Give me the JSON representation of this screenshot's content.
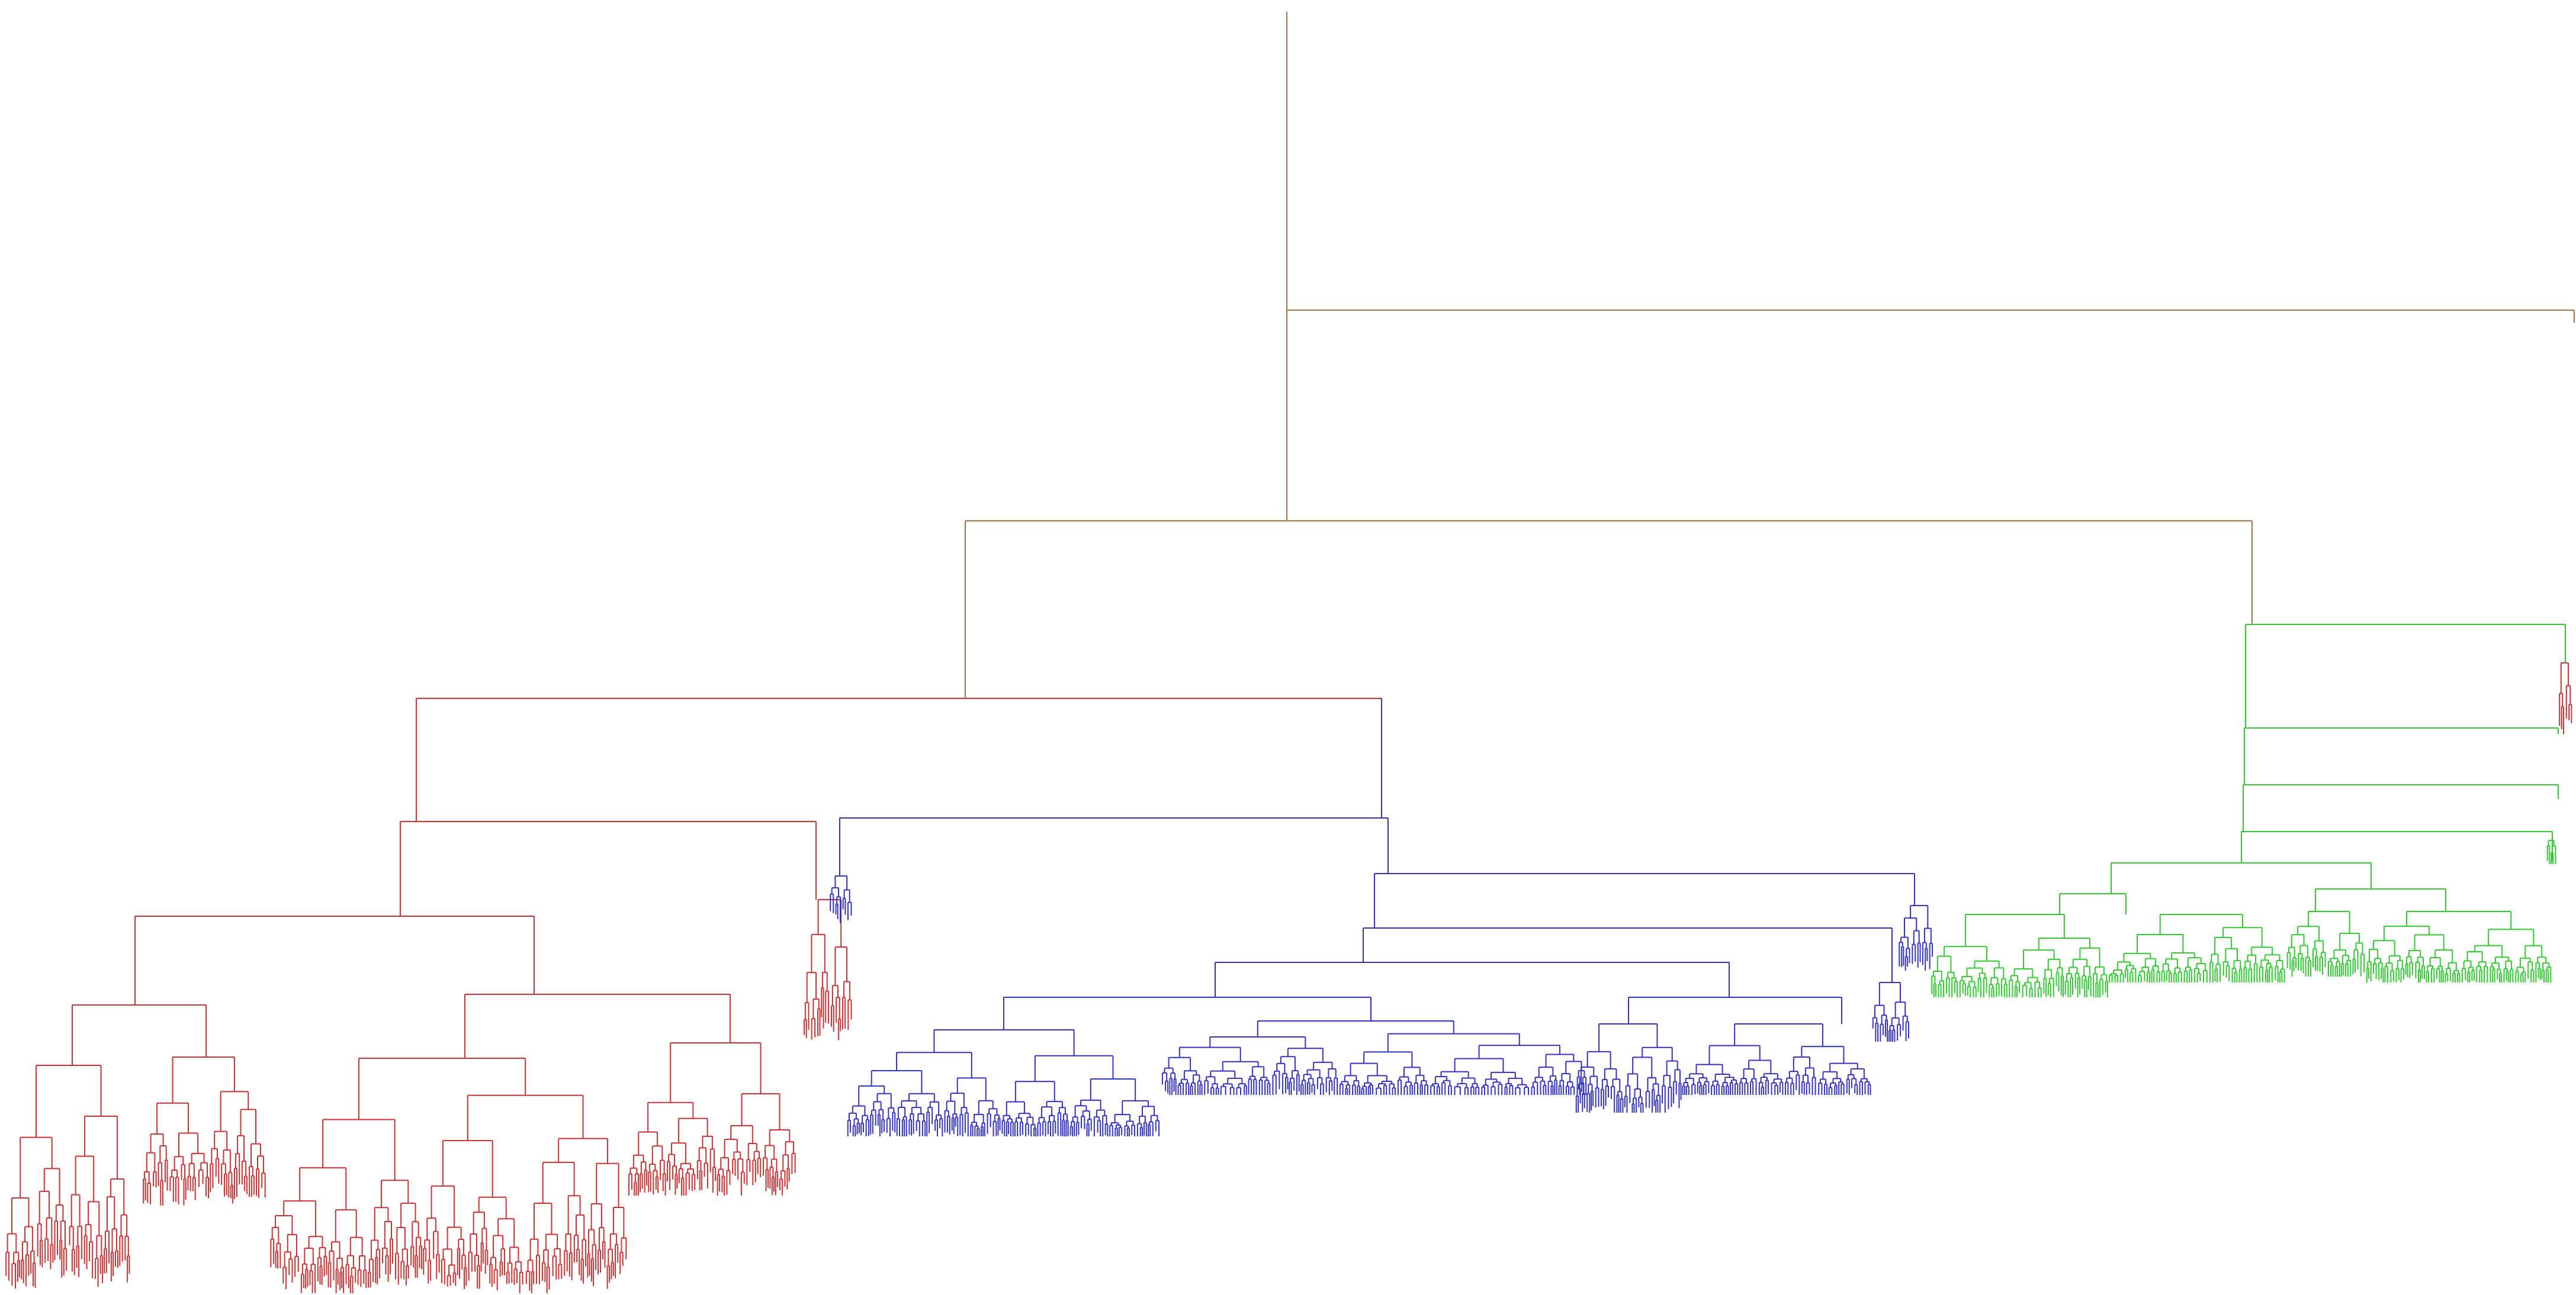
{
  "diagram": {
    "type": "dendrogram",
    "orientation": "top-down",
    "clusters": [
      {
        "name": "red",
        "color": "#c83232"
      },
      {
        "name": "blue",
        "color": "#3232c0"
      },
      {
        "name": "green",
        "color": "#32c832"
      },
      {
        "name": "root-links",
        "color": "#a0764a"
      }
    ],
    "leaf_count_estimate": 1700,
    "labels_visible": false
  }
}
